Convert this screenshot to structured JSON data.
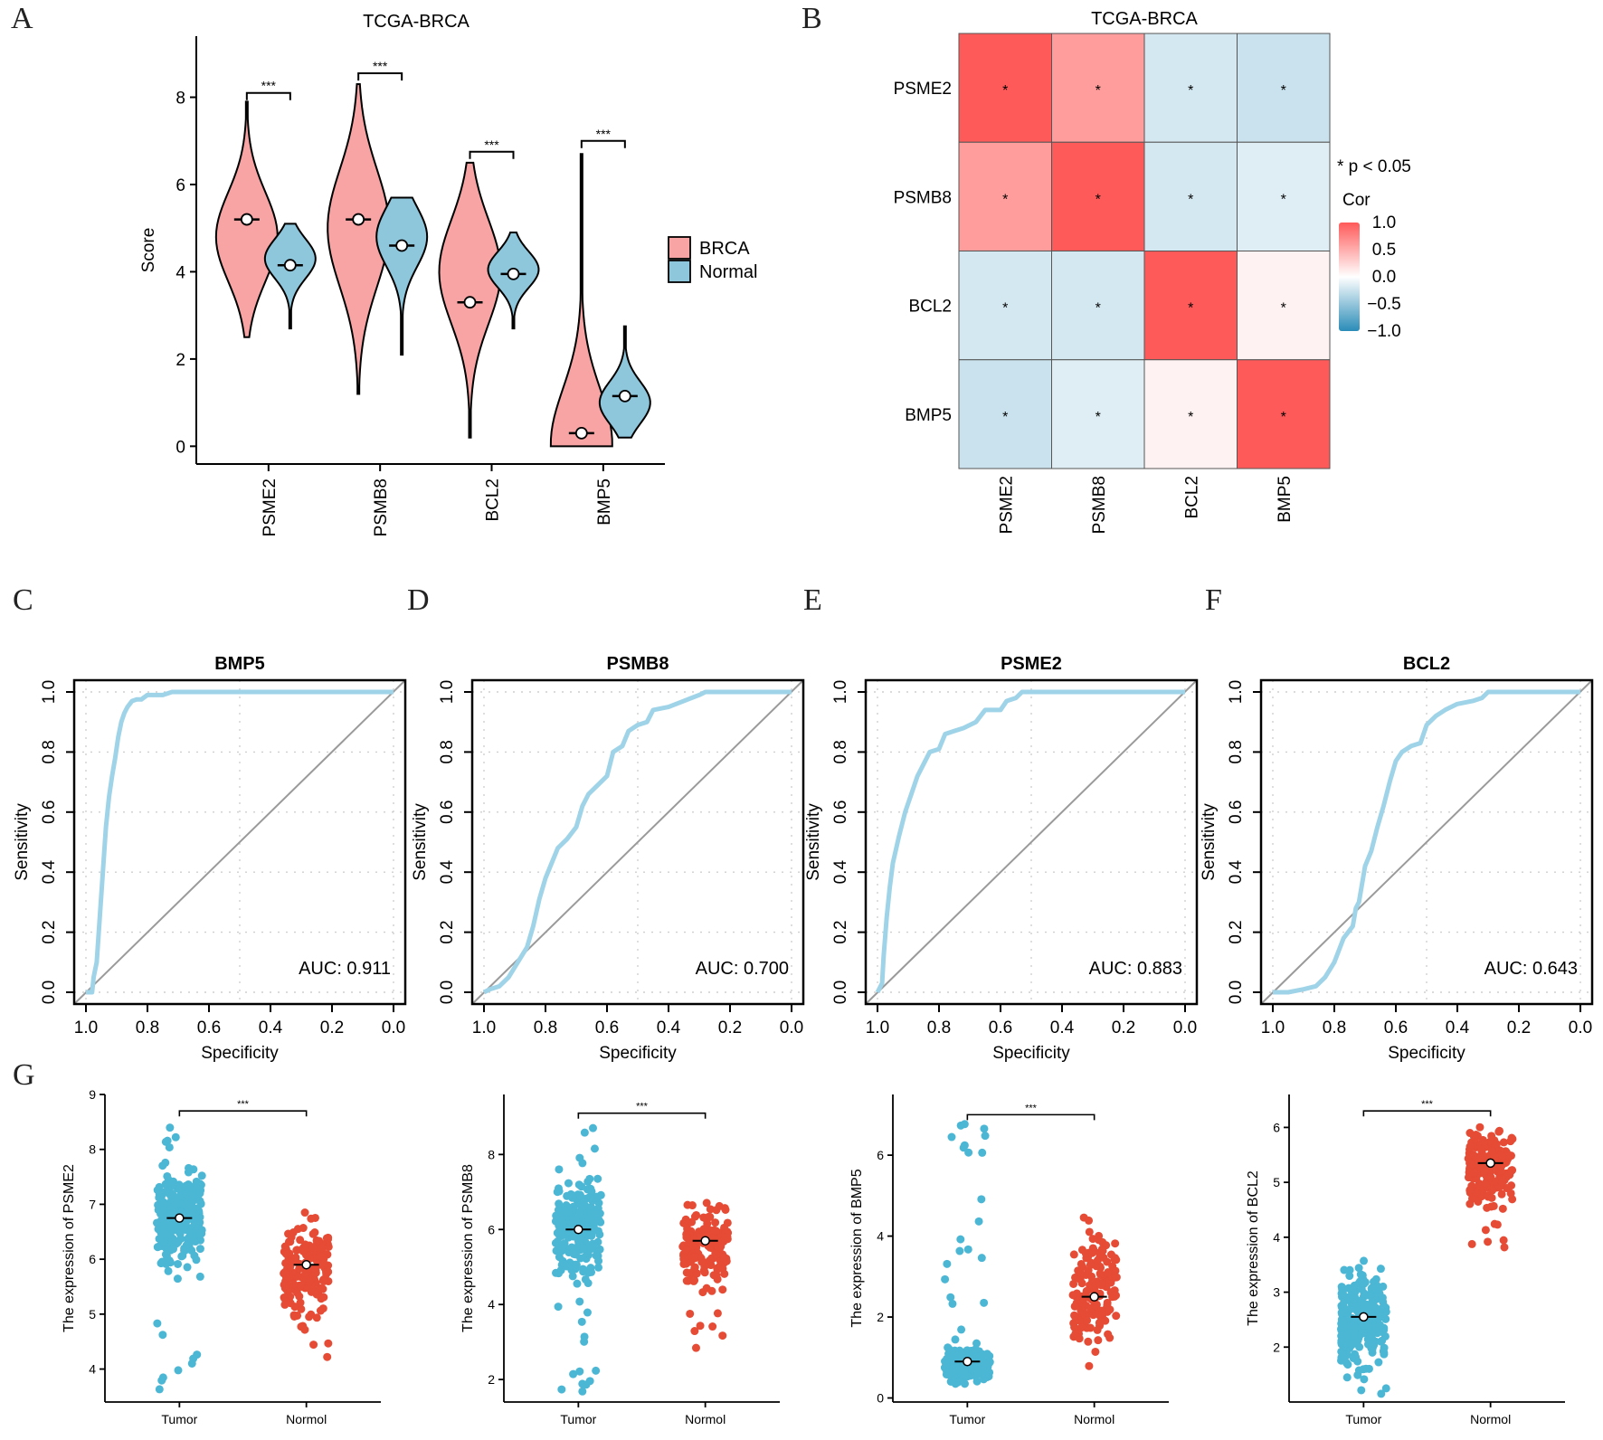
{
  "panels": {
    "A": "A",
    "B": "B",
    "C": "C",
    "D": "D",
    "E": "E",
    "F": "F",
    "G": "G"
  },
  "chart_data": [
    {
      "id": "A",
      "type": "violin",
      "title": "TCGA-BRCA",
      "xlabel": "",
      "ylabel": "Score",
      "ylim": [
        -0.2,
        9.4
      ],
      "yticks": [
        0,
        2,
        4,
        6,
        8
      ],
      "categories": [
        "PSME2",
        "PSMB8",
        "BCL2",
        "BMP5"
      ],
      "legend": {
        "position": "right",
        "entries": [
          {
            "label": "BRCA",
            "color": "#F8A3A4"
          },
          {
            "label": "Normal",
            "color": "#8EC6DC"
          }
        ]
      },
      "series": [
        {
          "name": "BRCA",
          "color": "#F8A3A4",
          "groups": [
            {
              "min": 2.5,
              "max": 7.9,
              "median": 5.2,
              "mode": 4.8
            },
            {
              "min": 1.2,
              "max": 8.3,
              "median": 5.2,
              "mode": 5.0
            },
            {
              "min": 0.2,
              "max": 6.5,
              "median": 3.3,
              "mode": 4.0
            },
            {
              "min": 0.0,
              "max": 6.7,
              "median": 0.3,
              "mode": 0.05
            }
          ]
        },
        {
          "name": "Normal",
          "color": "#8EC6DC",
          "groups": [
            {
              "min": 2.7,
              "max": 5.1,
              "median": 4.15,
              "mode": 4.3
            },
            {
              "min": 2.1,
              "max": 5.7,
              "median": 4.6,
              "mode": 4.8
            },
            {
              "min": 2.7,
              "max": 4.9,
              "median": 3.95,
              "mode": 4.05
            },
            {
              "min": 0.2,
              "max": 2.75,
              "median": 1.15,
              "mode": 1.0
            }
          ]
        }
      ],
      "significance": [
        "***",
        "***",
        "***",
        "***"
      ],
      "sig_y": [
        8.1,
        8.55,
        6.75,
        7.0
      ]
    },
    {
      "id": "B",
      "type": "heatmap",
      "title": "TCGA-BRCA",
      "rows": [
        "PSME2",
        "PSMB8",
        "BCL2",
        "BMP5"
      ],
      "cols": [
        "PSME2",
        "PSMB8",
        "BCL2",
        "BMP5"
      ],
      "values": [
        [
          1.0,
          0.6,
          -0.2,
          -0.25
        ],
        [
          0.6,
          1.0,
          -0.2,
          -0.15
        ],
        [
          -0.2,
          -0.2,
          1.0,
          0.08
        ],
        [
          -0.25,
          -0.15,
          0.08,
          1.0
        ]
      ],
      "cell_label": "*",
      "annotation": "* p < 0.05",
      "legend_title": "Cor",
      "legend_ticks": [
        "1.0",
        "0.5",
        "0.0",
        "−0.5",
        "−1.0"
      ],
      "colors": {
        "high": "#FF5A5A",
        "mid": "#FFFFFF",
        "low": "#2A8CB8"
      }
    },
    {
      "id": "C",
      "type": "line",
      "title": "BMP5",
      "xlabel": "Specificity",
      "ylabel": "Sensitivity",
      "xlim": [
        1.0,
        0.0
      ],
      "ylim": [
        0.0,
        1.0
      ],
      "xticks": [
        "1.0",
        "0.8",
        "0.6",
        "0.4",
        "0.2",
        "0.0"
      ],
      "yticks": [
        "0.0",
        "0.2",
        "0.4",
        "0.6",
        "0.8",
        "1.0"
      ],
      "grid": true,
      "auc_label": "AUC: 0.911",
      "x": [
        1.0,
        0.98,
        0.975,
        0.965,
        0.955,
        0.945,
        0.935,
        0.925,
        0.915,
        0.905,
        0.895,
        0.885,
        0.875,
        0.865,
        0.85,
        0.835,
        0.82,
        0.8,
        0.78,
        0.75,
        0.72,
        0.7,
        0.5,
        0.0
      ],
      "y": [
        0.0,
        0.0,
        0.05,
        0.1,
        0.25,
        0.4,
        0.55,
        0.65,
        0.72,
        0.78,
        0.85,
        0.9,
        0.93,
        0.95,
        0.97,
        0.975,
        0.975,
        0.99,
        0.99,
        0.99,
        1.0,
        1.0,
        1.0,
        1.0
      ]
    },
    {
      "id": "D",
      "type": "line",
      "title": "PSMB8",
      "xlabel": "Specificity",
      "ylabel": "Sensitivity",
      "xlim": [
        1.0,
        0.0
      ],
      "ylim": [
        0.0,
        1.0
      ],
      "xticks": [
        "1.0",
        "0.8",
        "0.6",
        "0.4",
        "0.2",
        "0.0"
      ],
      "yticks": [
        "0.0",
        "0.2",
        "0.4",
        "0.6",
        "0.8",
        "1.0"
      ],
      "grid": true,
      "auc_label": "AUC: 0.700",
      "x": [
        1.0,
        0.98,
        0.95,
        0.92,
        0.89,
        0.86,
        0.84,
        0.82,
        0.8,
        0.78,
        0.76,
        0.73,
        0.7,
        0.68,
        0.66,
        0.63,
        0.6,
        0.58,
        0.55,
        0.53,
        0.5,
        0.47,
        0.45,
        0.4,
        0.35,
        0.3,
        0.28,
        0.0
      ],
      "y": [
        0.0,
        0.01,
        0.02,
        0.05,
        0.1,
        0.15,
        0.22,
        0.31,
        0.38,
        0.43,
        0.48,
        0.51,
        0.55,
        0.62,
        0.66,
        0.69,
        0.72,
        0.8,
        0.82,
        0.87,
        0.89,
        0.9,
        0.94,
        0.95,
        0.97,
        0.99,
        1.0,
        1.0
      ]
    },
    {
      "id": "E",
      "type": "line",
      "title": "PSME2",
      "xlabel": "Specificity",
      "ylabel": "Sensitivity",
      "xlim": [
        1.0,
        0.0
      ],
      "ylim": [
        0.0,
        1.0
      ],
      "xticks": [
        "1.0",
        "0.8",
        "0.6",
        "0.4",
        "0.2",
        "0.0"
      ],
      "yticks": [
        "0.0",
        "0.2",
        "0.4",
        "0.6",
        "0.8",
        "1.0"
      ],
      "grid": true,
      "auc_label": "AUC: 0.883",
      "x": [
        1.0,
        0.985,
        0.98,
        0.97,
        0.96,
        0.95,
        0.93,
        0.91,
        0.89,
        0.87,
        0.85,
        0.83,
        0.8,
        0.78,
        0.75,
        0.72,
        0.68,
        0.65,
        0.6,
        0.58,
        0.55,
        0.53,
        0.0
      ],
      "y": [
        0.0,
        0.03,
        0.12,
        0.25,
        0.35,
        0.43,
        0.52,
        0.6,
        0.66,
        0.72,
        0.76,
        0.8,
        0.81,
        0.86,
        0.87,
        0.88,
        0.9,
        0.94,
        0.94,
        0.97,
        0.98,
        1.0,
        1.0
      ]
    },
    {
      "id": "F",
      "type": "line",
      "title": "BCL2",
      "xlabel": "Specificity",
      "ylabel": "Sensitivity",
      "xlim": [
        1.0,
        0.0
      ],
      "ylim": [
        0.0,
        1.0
      ],
      "xticks": [
        "1.0",
        "0.8",
        "0.6",
        "0.4",
        "0.2",
        "0.0"
      ],
      "yticks": [
        "0.0",
        "0.2",
        "0.4",
        "0.6",
        "0.8",
        "1.0"
      ],
      "grid": true,
      "auc_label": "AUC: 0.643",
      "x": [
        1.0,
        0.95,
        0.9,
        0.86,
        0.83,
        0.8,
        0.77,
        0.74,
        0.73,
        0.72,
        0.7,
        0.68,
        0.66,
        0.64,
        0.62,
        0.6,
        0.58,
        0.55,
        0.52,
        0.5,
        0.47,
        0.44,
        0.4,
        0.35,
        0.32,
        0.3,
        0.0
      ],
      "y": [
        0.0,
        0.0,
        0.01,
        0.02,
        0.05,
        0.1,
        0.18,
        0.22,
        0.28,
        0.3,
        0.42,
        0.47,
        0.55,
        0.62,
        0.7,
        0.77,
        0.8,
        0.82,
        0.83,
        0.89,
        0.92,
        0.94,
        0.96,
        0.97,
        0.98,
        1.0,
        1.0
      ]
    },
    {
      "id": "G1",
      "type": "scatter",
      "title": "",
      "xlabel": "",
      "ylabel": "The expression of PSME2",
      "categories": [
        "Tumor",
        "Normol"
      ],
      "ylim": [
        3.4,
        9.0
      ],
      "yticks": [
        4,
        5,
        6,
        7,
        8,
        9
      ],
      "colors": [
        "#4BB7D5",
        "#E64B35"
      ],
      "significance": "***",
      "sig_y": 8.7,
      "groups": [
        {
          "mean": 6.75,
          "min": 3.5,
          "max": 8.55,
          "q_low": 5.7,
          "q_high": 8.0
        },
        {
          "mean": 5.9,
          "min": 4.0,
          "max": 6.85,
          "q_low": 4.6,
          "q_high": 6.85
        }
      ]
    },
    {
      "id": "G2",
      "type": "scatter",
      "title": "",
      "xlabel": "",
      "ylabel": "The expression of PSMB8",
      "categories": [
        "Tumor",
        "Normol"
      ],
      "ylim": [
        1.4,
        9.6
      ],
      "yticks": [
        2,
        4,
        6,
        8
      ],
      "colors": [
        "#4BB7D5",
        "#E64B35"
      ],
      "significance": "***",
      "sig_y": 9.1,
      "groups": [
        {
          "mean": 6.0,
          "min": 1.6,
          "max": 8.85,
          "q_low": 4.0,
          "q_high": 8.0
        },
        {
          "mean": 5.7,
          "min": 2.8,
          "max": 6.9,
          "q_low": 3.9,
          "q_high": 6.7
        }
      ]
    },
    {
      "id": "G3",
      "type": "scatter",
      "title": "",
      "xlabel": "",
      "ylabel": "The expression of BMP5",
      "categories": [
        "Tumor",
        "Normol"
      ],
      "ylim": [
        -0.1,
        7.5
      ],
      "yticks": [
        0,
        2,
        4,
        6
      ],
      "colors": [
        "#4BB7D5",
        "#E64B35"
      ],
      "significance": "***",
      "sig_y": 7.0,
      "groups": [
        {
          "mean": 0.9,
          "min": 0.1,
          "max": 6.8,
          "q_low": 0.1,
          "q_high": 1.3
        },
        {
          "mean": 2.5,
          "min": 0.7,
          "max": 4.75,
          "q_low": 0.9,
          "q_high": 4.6
        }
      ]
    },
    {
      "id": "G4",
      "type": "scatter",
      "title": "",
      "xlabel": "",
      "ylabel": "The expression of BCL2",
      "categories": [
        "Tumor",
        "Normol"
      ],
      "ylim": [
        1.0,
        6.6
      ],
      "yticks": [
        2,
        3,
        4,
        5,
        6
      ],
      "colors": [
        "#4BB7D5",
        "#E64B35"
      ],
      "significance": "***",
      "sig_y": 6.3,
      "groups": [
        {
          "mean": 2.55,
          "min": 1.15,
          "max": 3.6,
          "q_low": 1.2,
          "q_high": 3.6
        },
        {
          "mean": 5.35,
          "min": 3.6,
          "max": 6.2,
          "q_low": 4.4,
          "q_high": 6.1
        }
      ]
    }
  ]
}
